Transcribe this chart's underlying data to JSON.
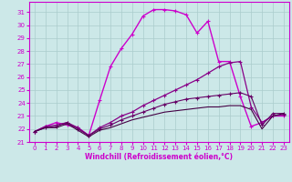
{
  "xlabel": "Windchill (Refroidissement éolien,°C)",
  "bg_color": "#cce8e8",
  "grid_color": "#aacccc",
  "xlim": [
    -0.5,
    23.5
  ],
  "ylim": [
    21,
    31.8
  ],
  "yticks": [
    21,
    22,
    23,
    24,
    25,
    26,
    27,
    28,
    29,
    30,
    31
  ],
  "xticks": [
    0,
    1,
    2,
    3,
    4,
    5,
    6,
    7,
    8,
    9,
    10,
    11,
    12,
    13,
    14,
    15,
    16,
    17,
    18,
    19,
    20,
    21,
    22,
    23
  ],
  "series": [
    {
      "x": [
        0,
        1,
        2,
        3,
        4,
        5,
        6,
        7,
        8,
        9,
        10,
        11,
        12,
        13,
        14,
        15,
        16,
        17,
        18,
        19,
        20,
        21,
        22,
        23
      ],
      "y": [
        21.8,
        22.2,
        22.5,
        22.3,
        22.1,
        21.5,
        24.2,
        26.8,
        28.2,
        29.3,
        30.7,
        31.2,
        31.2,
        31.1,
        30.8,
        29.4,
        30.3,
        27.2,
        27.2,
        24.5,
        22.2,
        22.5,
        23.0,
        23.0
      ],
      "color": "#cc00cc",
      "lw": 1.0,
      "marker": true
    },
    {
      "x": [
        0,
        1,
        2,
        3,
        4,
        5,
        6,
        7,
        8,
        9,
        10,
        11,
        12,
        13,
        14,
        15,
        16,
        17,
        18,
        19,
        20,
        21,
        22,
        23
      ],
      "y": [
        21.8,
        22.2,
        22.3,
        22.5,
        22.1,
        21.5,
        22.1,
        22.5,
        23.0,
        23.3,
        23.8,
        24.2,
        24.6,
        25.0,
        25.4,
        25.8,
        26.3,
        26.8,
        27.1,
        27.2,
        23.7,
        22.5,
        23.0,
        23.1
      ],
      "color": "#880088",
      "lw": 0.9,
      "marker": true
    },
    {
      "x": [
        0,
        1,
        2,
        3,
        4,
        5,
        6,
        7,
        8,
        9,
        10,
        11,
        12,
        13,
        14,
        15,
        16,
        17,
        18,
        19,
        20,
        21,
        22,
        23
      ],
      "y": [
        21.8,
        22.1,
        22.2,
        22.5,
        22.0,
        21.5,
        22.0,
        22.3,
        22.7,
        23.0,
        23.3,
        23.6,
        23.9,
        24.1,
        24.3,
        24.4,
        24.5,
        24.6,
        24.7,
        24.8,
        24.5,
        22.3,
        23.2,
        23.2
      ],
      "color": "#660066",
      "lw": 0.8,
      "marker": true
    },
    {
      "x": [
        0,
        1,
        2,
        3,
        4,
        5,
        6,
        7,
        8,
        9,
        10,
        11,
        12,
        13,
        14,
        15,
        16,
        17,
        18,
        19,
        20,
        21,
        22,
        23
      ],
      "y": [
        21.8,
        22.1,
        22.1,
        22.4,
        21.9,
        21.4,
        21.9,
        22.1,
        22.4,
        22.7,
        22.9,
        23.1,
        23.3,
        23.4,
        23.5,
        23.6,
        23.7,
        23.7,
        23.8,
        23.8,
        23.5,
        22.0,
        23.0,
        23.2
      ],
      "color": "#440044",
      "lw": 0.8,
      "marker": false
    }
  ]
}
